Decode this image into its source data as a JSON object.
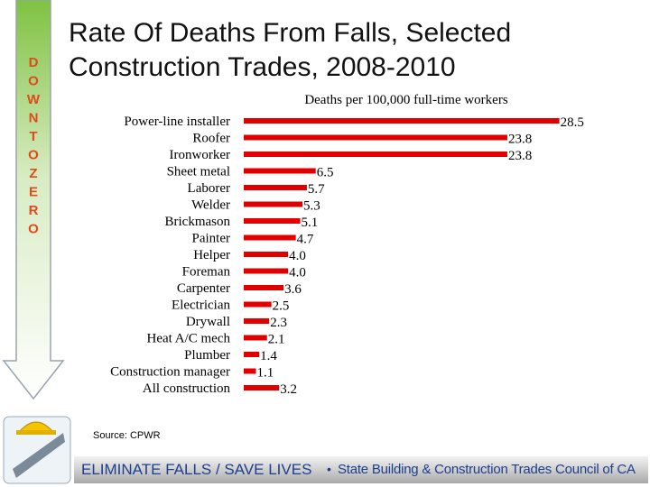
{
  "side_letters": [
    "D",
    "O",
    "W",
    "N",
    "T",
    "O",
    "Z",
    "E",
    "R",
    "O"
  ],
  "chart_data": {
    "type": "bar",
    "orientation": "horizontal",
    "title": "Rate Of Deaths From Falls, Selected Construction Trades, 2008-2010",
    "axis_label": "Deaths per 100,000 full-time workers",
    "categories": [
      "Power-line installer",
      "Roofer",
      "Ironworker",
      "Sheet metal",
      "Laborer",
      "Welder",
      "Brickmason",
      "Painter",
      "Helper",
      "Foreman",
      "Carpenter",
      "Electrician",
      "Drywall",
      "Heat A/C mech",
      "Plumber",
      "Construction manager",
      "All construction"
    ],
    "values": [
      28.5,
      23.8,
      23.8,
      6.5,
      5.7,
      5.3,
      5.1,
      4.7,
      4.0,
      4.0,
      3.6,
      2.5,
      2.3,
      2.1,
      1.4,
      1.1,
      3.2
    ],
    "value_labels": [
      "28.5",
      "23.8",
      "23.8",
      "6.5",
      "5.7",
      "5.3",
      "5.1",
      "4.7",
      "4.0",
      "4.0",
      "3.6",
      "2.5",
      "2.3",
      "2.1",
      "1.4",
      "1.1",
      "3.2"
    ],
    "color": "#e00000",
    "xlim": [
      0,
      30
    ],
    "source": "Source: CPWR"
  },
  "footer": {
    "slogan": "ELIMINATE FALLS / SAVE LIVES",
    "bullet": "•",
    "org": "State Building & Construction Trades Council of CA"
  }
}
